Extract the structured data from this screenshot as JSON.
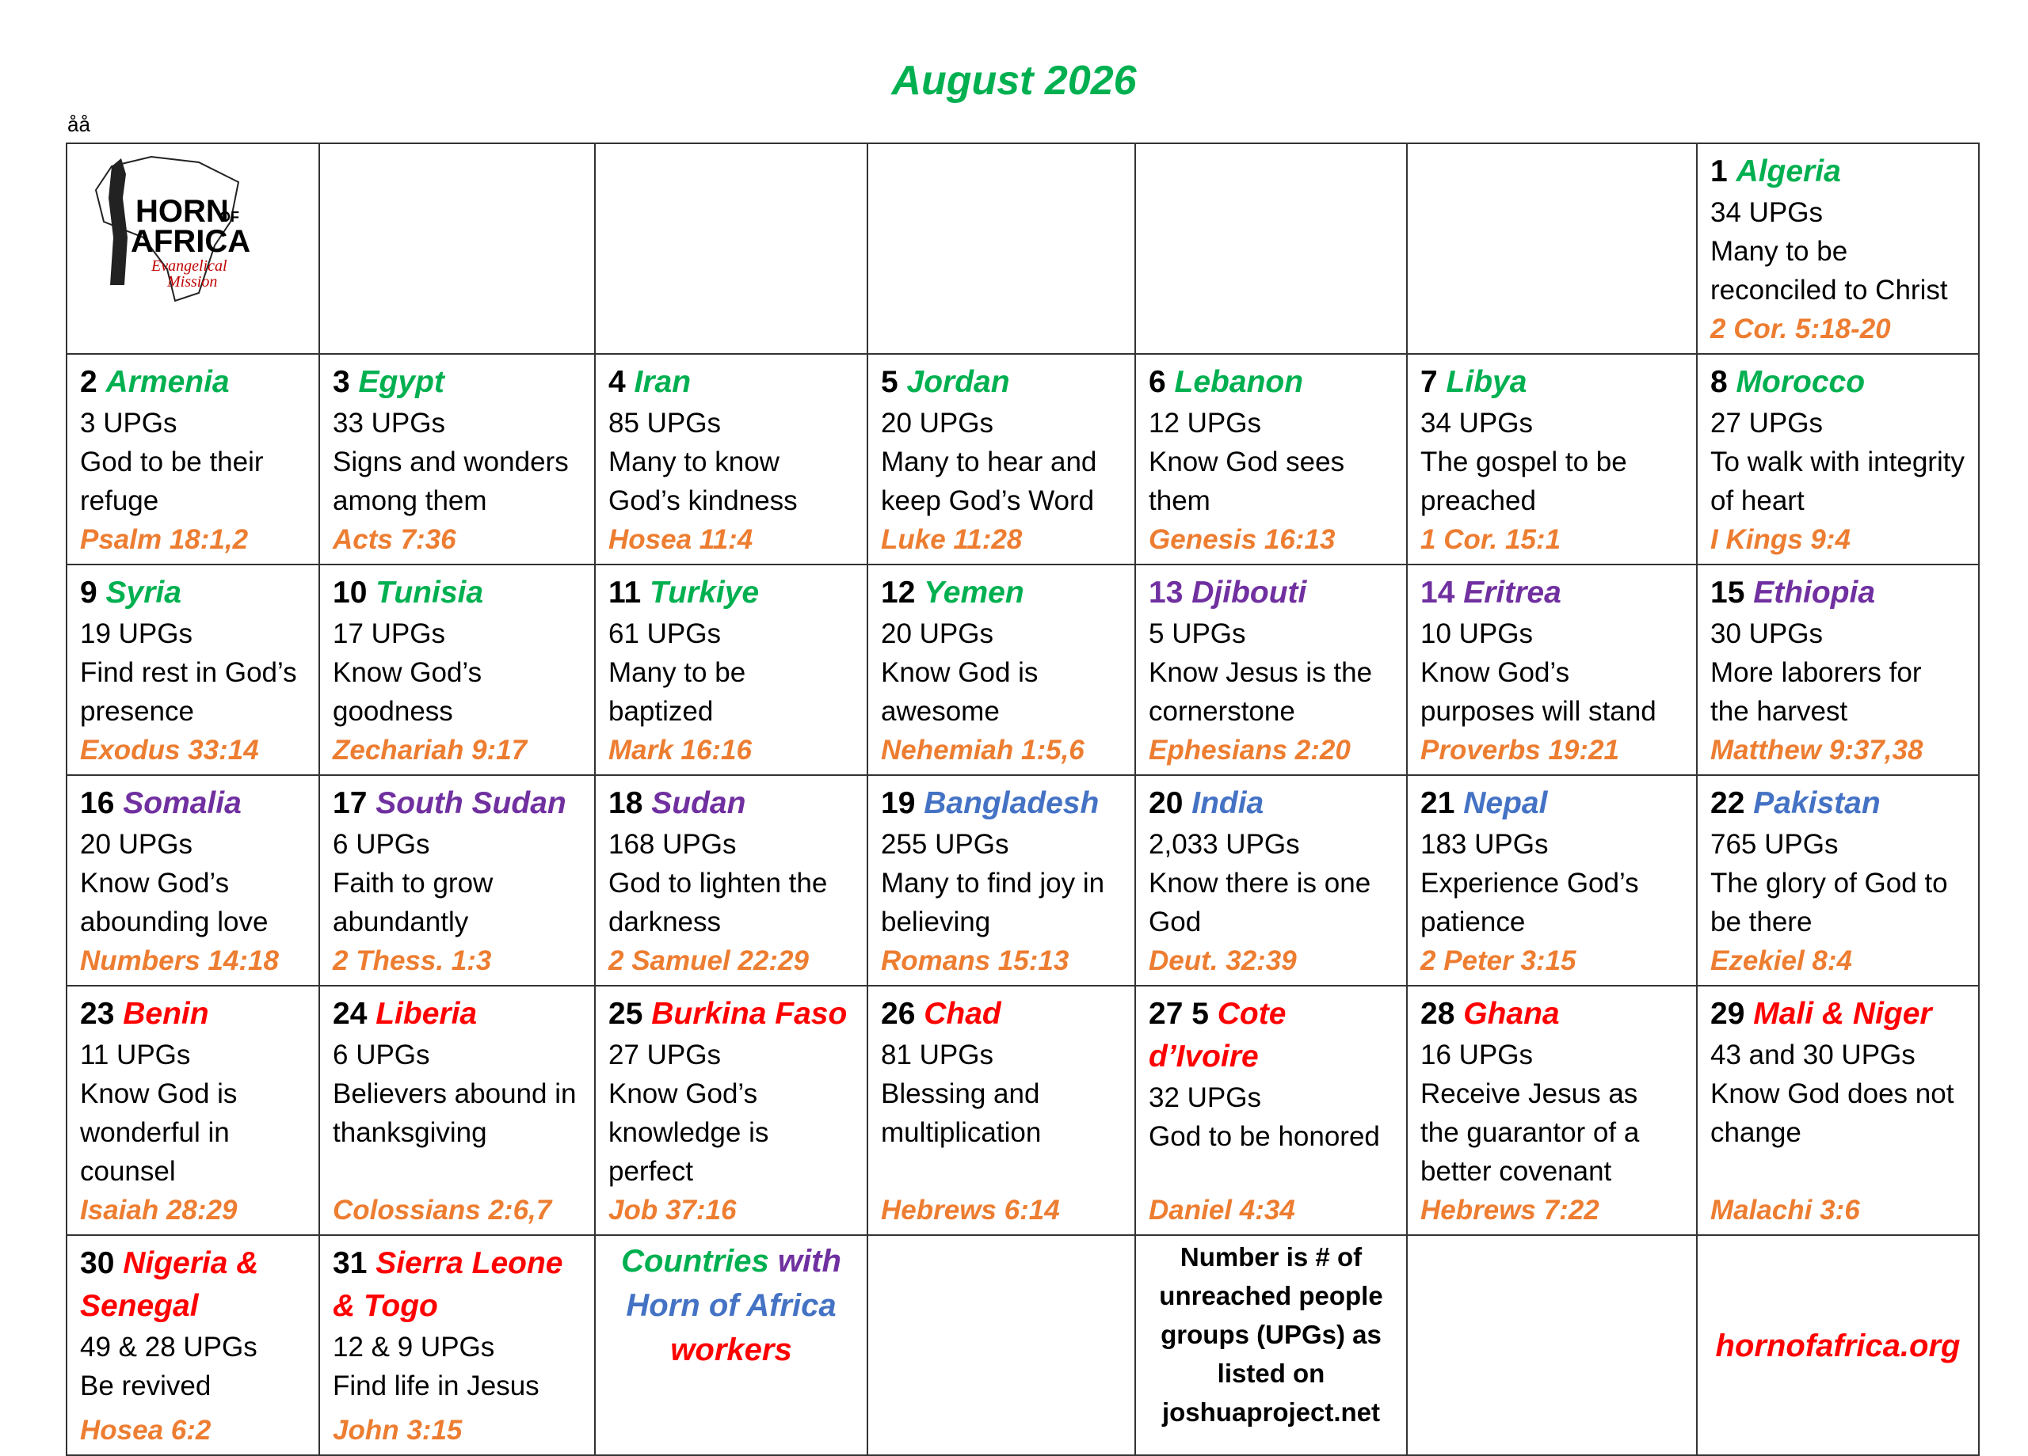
{
  "title": "August 2026",
  "stray_mark": "åå",
  "weeks": [
    [
      {
        "logo": {
          "name_top": "HORN",
          "name_of": "OF",
          "name_bottom": "AFRICA",
          "tagline_1": "Evangelical",
          "tagline_2": "Mission"
        }
      },
      null,
      null,
      null,
      null,
      null,
      {
        "day": 1,
        "country": "Algeria",
        "color": "#00b050",
        "upgs": "34 UPGs",
        "prayer": "Many to be reconciled to Christ",
        "verse": "2 Cor. 5:18-20"
      }
    ],
    [
      {
        "day": 2,
        "country": "Armenia",
        "color": "#00b050",
        "upgs": "3 UPGs",
        "prayer": "God to be their refuge",
        "verse": "Psalm 18:1,2"
      },
      {
        "day": 3,
        "country": "Egypt",
        "color": "#00b050",
        "upgs": "33 UPGs",
        "prayer": "Signs and wonders among them",
        "verse": "Acts 7:36"
      },
      {
        "day": 4,
        "country": "Iran",
        "color": "#00b050",
        "upgs": "85 UPGs",
        "prayer": "Many to know God’s kindness",
        "verse": "Hosea 11:4"
      },
      {
        "day": 5,
        "country": "Jordan",
        "color": "#00b050",
        "upgs": "20 UPGs",
        "prayer": "Many to hear and keep God’s Word",
        "verse": "Luke 11:28"
      },
      {
        "day": 6,
        "country": "Lebanon",
        "color": "#00b050",
        "upgs": "12 UPGs",
        "prayer": "Know God sees them",
        "verse": "Genesis 16:13"
      },
      {
        "day": 7,
        "country": "Libya",
        "color": "#00b050",
        "upgs": "34 UPGs",
        "prayer": "The gospel to be preached",
        "verse": "1 Cor. 15:1"
      },
      {
        "day": 8,
        "country": "Morocco",
        "color": "#00b050",
        "upgs": "27 UPGs",
        "prayer": "To walk with integrity of heart",
        "verse": "I Kings 9:4"
      }
    ],
    [
      {
        "day": 9,
        "country": "Syria",
        "color": "#00b050",
        "upgs": "19 UPGs",
        "prayer": "Find rest in God’s presence",
        "verse": "Exodus 33:14"
      },
      {
        "day": 10,
        "country": "Tunisia",
        "color": "#00b050",
        "upgs": "17 UPGs",
        "prayer": "Know God’s goodness",
        "verse": "Zechariah 9:17"
      },
      {
        "day": 11,
        "country": "Turkiye",
        "color": "#00b050",
        "upgs": "61 UPGs",
        "prayer": "Many to be baptized",
        "verse": "Mark 16:16"
      },
      {
        "day": 12,
        "country": "Yemen",
        "color": "#00b050",
        "upgs": "20 UPGs",
        "prayer": "Know God is awesome",
        "verse": "Nehemiah 1:5,6"
      },
      {
        "day": 13,
        "country": "Djibouti",
        "color": "#7030a0",
        "day_color": "#7030a0",
        "upgs": "5 UPGs",
        "prayer": "Know Jesus is the cornerstone",
        "verse": "Ephesians 2:20"
      },
      {
        "day": 14,
        "country": "Eritrea",
        "color": "#7030a0",
        "day_color": "#7030a0",
        "upgs": "10 UPGs",
        "prayer": "Know God’s purposes will stand",
        "verse": "Proverbs 19:21"
      },
      {
        "day": 15,
        "country": "Ethiopia",
        "color": "#7030a0",
        "upgs": "30 UPGs",
        "prayer": "More laborers for the harvest",
        "verse": "Matthew 9:37,38"
      }
    ],
    [
      {
        "day": 16,
        "country": "Somalia",
        "color": "#7030a0",
        "upgs": "20 UPGs",
        "prayer": "Know God’s abounding love",
        "verse": "Numbers 14:18"
      },
      {
        "day": 17,
        "country": "South Sudan",
        "color": "#7030a0",
        "upgs": "6 UPGs",
        "prayer": "Faith to grow abundantly",
        "verse": "2 Thess. 1:3"
      },
      {
        "day": 18,
        "country": "Sudan",
        "color": "#7030a0",
        "upgs": "168 UPGs",
        "prayer": "God to lighten the darkness",
        "verse": "2 Samuel 22:29"
      },
      {
        "day": 19,
        "country": "Bangladesh",
        "color": "#4472c4",
        "upgs": "255 UPGs",
        "prayer": "Many to find joy in believing",
        "verse": "Romans 15:13"
      },
      {
        "day": 20,
        "country": "India",
        "color": "#4472c4",
        "upgs": "2,033 UPGs",
        "prayer": "Know there is one God",
        "verse": "Deut. 32:39"
      },
      {
        "day": 21,
        "country": "Nepal",
        "color": "#4472c4",
        "upgs": "183 UPGs",
        "prayer": "Experience God’s patience",
        "verse": "2 Peter 3:15"
      },
      {
        "day": 22,
        "country": "Pakistan",
        "color": "#4472c4",
        "upgs": "765 UPGs",
        "prayer": "The glory of God to be there",
        "verse": "Ezekiel 8:4"
      }
    ],
    [
      {
        "day": 23,
        "country": "Benin",
        "color": "#ff0000",
        "upgs": "11 UPGs",
        "prayer": "Know God is wonderful in counsel",
        "verse": "Isaiah 28:29"
      },
      {
        "day": 24,
        "country": "Liberia",
        "color": "#ff0000",
        "upgs": "6 UPGs",
        "prayer": "Believers abound in thanksgiving",
        "verse": "Colossians 2:6,7"
      },
      {
        "day": 25,
        "country": "Burkina Faso",
        "color": "#ff0000",
        "upgs": "27 UPGs",
        "prayer": "Know God’s knowledge is perfect",
        "verse": "Job 37:16"
      },
      {
        "day": 26,
        "country": "Chad",
        "color": "#ff0000",
        "upgs": "81 UPGs",
        "prayer": "Blessing and multiplication",
        "verse": "Hebrews 6:14"
      },
      {
        "day": "27 5",
        "country": "Cote d’Ivoire",
        "color": "#ff0000",
        "upgs": "32 UPGs",
        "prayer": "God to be honored",
        "verse": "Daniel 4:34"
      },
      {
        "day": 28,
        "country": "Ghana",
        "color": "#ff0000",
        "upgs": "16 UPGs",
        "prayer": "Receive Jesus as the guarantor of a better covenant",
        "verse": "Hebrews 7:22"
      },
      {
        "day": 29,
        "country": "Mali & Niger",
        "color": "#ff0000",
        "upgs": "43 and 30 UPGs",
        "prayer": "Know God does not change",
        "verse": "Malachi 3:6"
      }
    ],
    [
      {
        "day": 30,
        "country": "Nigeria & Senegal",
        "color": "#ff0000",
        "upgs": "49 & 28 UPGs",
        "prayer": "Be revived",
        "verse": "Hosea 6:2"
      },
      {
        "day": 31,
        "country": "Sierra Leone & Togo",
        "color": "#ff0000",
        "upgs": "12 & 9 UPGs",
        "prayer": "Find life in Jesus",
        "verse": "John 3:15"
      },
      {
        "legend": [
          {
            "text": "Countries",
            "color": "#00b050"
          },
          {
            "text": "with",
            "color": "#7030a0"
          },
          {
            "text": "Horn of Africa",
            "color": "#4472c4"
          },
          {
            "text": "workers",
            "color": "#ff0000"
          }
        ]
      },
      null,
      {
        "note": "Number is # of unreached people groups (UPGs) as listed on joshuaproject.net"
      },
      null,
      {
        "link": "hornofafrica.org"
      }
    ]
  ]
}
